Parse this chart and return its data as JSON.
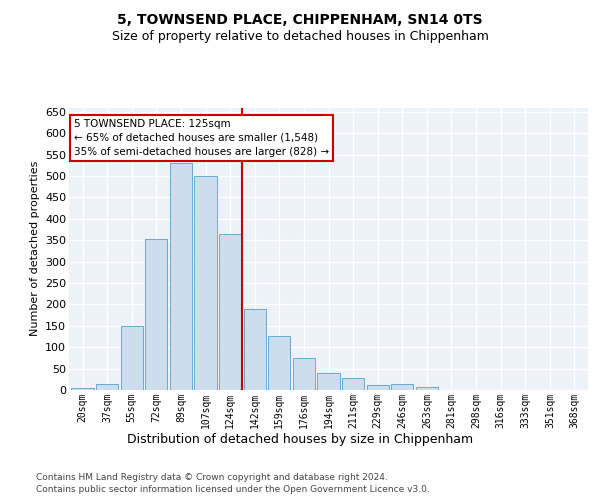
{
  "title1": "5, TOWNSEND PLACE, CHIPPENHAM, SN14 0TS",
  "title2": "Size of property relative to detached houses in Chippenham",
  "xlabel": "Distribution of detached houses by size in Chippenham",
  "ylabel": "Number of detached properties",
  "categories": [
    "20sqm",
    "37sqm",
    "55sqm",
    "72sqm",
    "89sqm",
    "107sqm",
    "124sqm",
    "142sqm",
    "159sqm",
    "176sqm",
    "194sqm",
    "211sqm",
    "229sqm",
    "246sqm",
    "263sqm",
    "281sqm",
    "298sqm",
    "316sqm",
    "333sqm",
    "351sqm",
    "368sqm"
  ],
  "values": [
    5,
    15,
    150,
    353,
    530,
    500,
    365,
    190,
    125,
    75,
    40,
    27,
    12,
    13,
    8,
    1,
    1,
    0,
    0,
    0,
    0
  ],
  "bar_color": "#ccdded",
  "bar_edge_color": "#6aaad4",
  "annotation_line1": "5 TOWNSEND PLACE: 125sqm",
  "annotation_line2": "← 65% of detached houses are smaller (1,548)",
  "annotation_line3": "35% of semi-detached houses are larger (828) →",
  "annotation_box_color": "#ffffff",
  "annotation_box_edge": "#cc0000",
  "vline_color": "#cc0000",
  "vline_x": 6.5,
  "ylim": [
    0,
    660
  ],
  "yticks": [
    0,
    50,
    100,
    150,
    200,
    250,
    300,
    350,
    400,
    450,
    500,
    550,
    600,
    650
  ],
  "background_color": "#edf2f9",
  "grid_color": "#ffffff",
  "footer1": "Contains HM Land Registry data © Crown copyright and database right 2024.",
  "footer2": "Contains public sector information licensed under the Open Government Licence v3.0."
}
